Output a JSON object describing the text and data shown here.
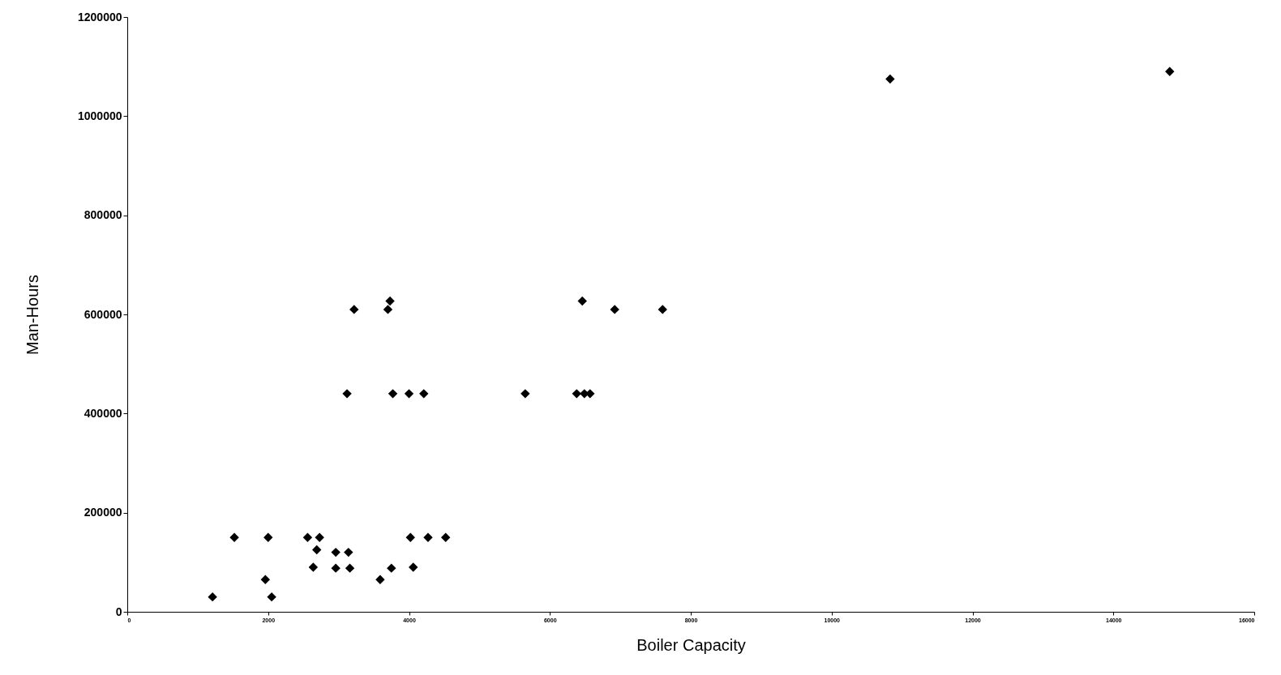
{
  "chart_data": {
    "type": "scatter",
    "xlabel": "Boiler Capacity",
    "ylabel": "Man-Hours",
    "marker": "diamond",
    "grid": false,
    "series": [
      {
        "color": "#000000",
        "x": [
          1210,
          1520,
          2000,
          1960,
          2050,
          2560,
          2730,
          2690,
          2640,
          2960,
          3140,
          2960,
          3160,
          3590,
          3750,
          4060,
          4020,
          4270,
          4520,
          3120,
          3770,
          4000,
          4210,
          5650,
          6380,
          6490,
          6570,
          3220,
          3700,
          3730,
          6460,
          6920,
          7600,
          10830,
          14800
        ],
        "values": [
          30000,
          150000,
          150000,
          65000,
          30000,
          150000,
          150000,
          125000,
          90000,
          120000,
          120000,
          88000,
          88000,
          65000,
          88000,
          90000,
          150000,
          150000,
          150000,
          440000,
          440000,
          440000,
          440000,
          440000,
          440000,
          440000,
          440000,
          610000,
          610000,
          627000,
          627000,
          610000,
          610000,
          1075000,
          1090000
        ]
      }
    ],
    "xlim": [
      0,
      16000
    ],
    "xticks": [
      0,
      2000,
      4000,
      6000,
      8000,
      10000,
      12000,
      14000,
      16000
    ],
    "ylim": [
      0,
      1200000
    ],
    "yticks": [
      0,
      200000,
      400000,
      600000,
      800000,
      1000000,
      1200000
    ]
  }
}
